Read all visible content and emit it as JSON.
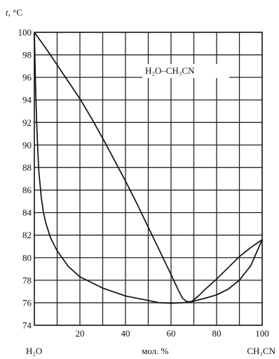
{
  "chart_data": {
    "type": "line",
    "title": "",
    "ylabel_var": "t",
    "ylabel_unit": ", °C",
    "xlabel": "мол. %",
    "x_left_component": "H₂O",
    "x_right_component": "CH₃CN",
    "annotation": "H₂O–CH₃CN",
    "xlim": [
      0,
      100
    ],
    "ylim": [
      74,
      100
    ],
    "xticks": [
      20,
      40,
      60,
      80,
      100
    ],
    "yticks": [
      74,
      76,
      78,
      80,
      82,
      84,
      86,
      88,
      90,
      92,
      94,
      96,
      98,
      100
    ],
    "grid": true,
    "series": [
      {
        "x": [
          0,
          5,
          10,
          15,
          20,
          25,
          30,
          35,
          40,
          45,
          50,
          55,
          60,
          63,
          65,
          67,
          69,
          72,
          75,
          80,
          85,
          90,
          95,
          100
        ],
        "y": [
          100,
          98.6,
          97.1,
          95.6,
          94.1,
          92.4,
          90.6,
          88.7,
          86.8,
          84.8,
          82.7,
          80.6,
          78.5,
          77.2,
          76.4,
          76.1,
          76.1,
          76.6,
          77.2,
          78.1,
          79.1,
          80.1,
          80.9,
          81.6
        ]
      },
      {
        "x": [
          0,
          0.5,
          1,
          1.5,
          2,
          3,
          4,
          5,
          7,
          10,
          15,
          20,
          30,
          40,
          50,
          55,
          60,
          65,
          69,
          75,
          80,
          85,
          90,
          95,
          100
        ],
        "y": [
          100,
          95.5,
          92,
          89.5,
          87.6,
          85.4,
          84,
          83.1,
          81.8,
          80.6,
          79.2,
          78.3,
          77.3,
          76.6,
          76.2,
          76,
          75.95,
          76,
          76.1,
          76.4,
          76.7,
          77.2,
          78,
          79.3,
          81.6
        ]
      }
    ]
  }
}
